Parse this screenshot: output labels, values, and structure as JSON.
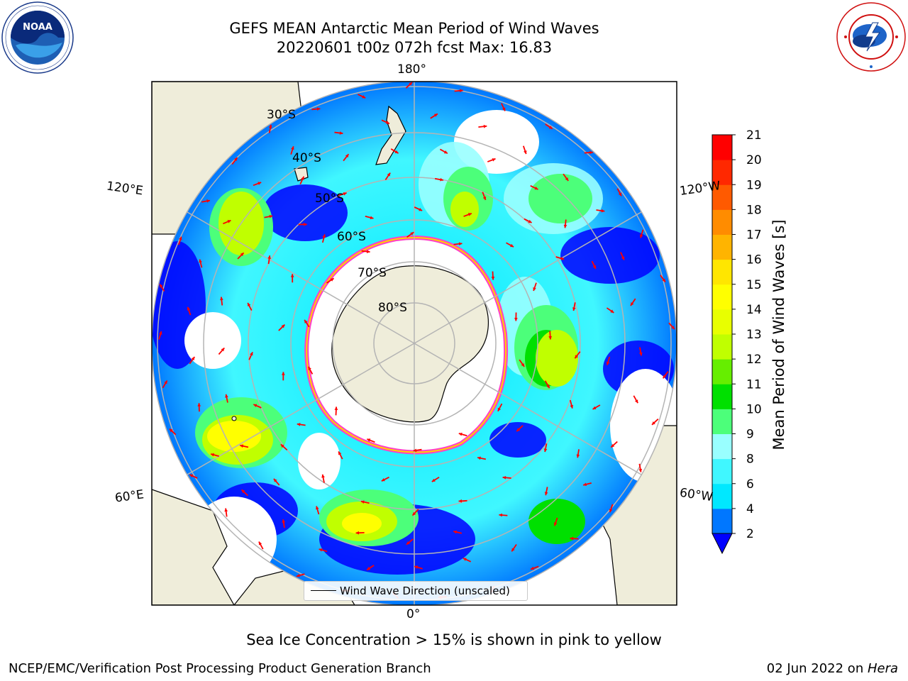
{
  "title": {
    "line1": "GEFS MEAN Antarctic Mean Period of Wind Waves",
    "line2": "20220601 t00z 072h fcst   Max: 16.83"
  },
  "map_labels": {
    "lon_top": "180°",
    "lon_bottom": "0°",
    "lon_left_top": "120°E",
    "lon_left_bottom": "60°E",
    "lon_right_top": "120°W",
    "lon_right_bottom": "60°W",
    "lat_30": "30°S",
    "lat_40": "40°S",
    "lat_50": "50°S",
    "lat_60": "60°S",
    "lat_70": "70°S",
    "lat_80": "80°S"
  },
  "legend": {
    "label": "Wind Wave Direction (unscaled)"
  },
  "colorbar": {
    "title": "Mean Period of Wind Waves [s]",
    "ticks": [
      "2",
      "4",
      "6",
      "8",
      "9",
      "10",
      "11",
      "12",
      "13",
      "14",
      "15",
      "16",
      "17",
      "18",
      "19",
      "20",
      "21"
    ],
    "colors": [
      "#0077ff",
      "#00e8ff",
      "#40f7ff",
      "#99ffff",
      "#4cff7a",
      "#00e000",
      "#66ee00",
      "#c0ff00",
      "#e8ff00",
      "#ffff00",
      "#ffe600",
      "#ffb400",
      "#ff8c00",
      "#ff5a00",
      "#ff2800",
      "#ff0000"
    ],
    "under_color": "#0000ff"
  },
  "caption": "Sea Ice Concentration > 15% is shown in pink to yellow",
  "footer": {
    "left": "NCEP/EMC/Verification Post Processing Product Generation Branch",
    "right_date": "02 Jun 2022 on ",
    "right_machine": "Hera"
  },
  "logos": {
    "noaa": "noaa-logo",
    "nws": "national-weather-service-logo"
  }
}
